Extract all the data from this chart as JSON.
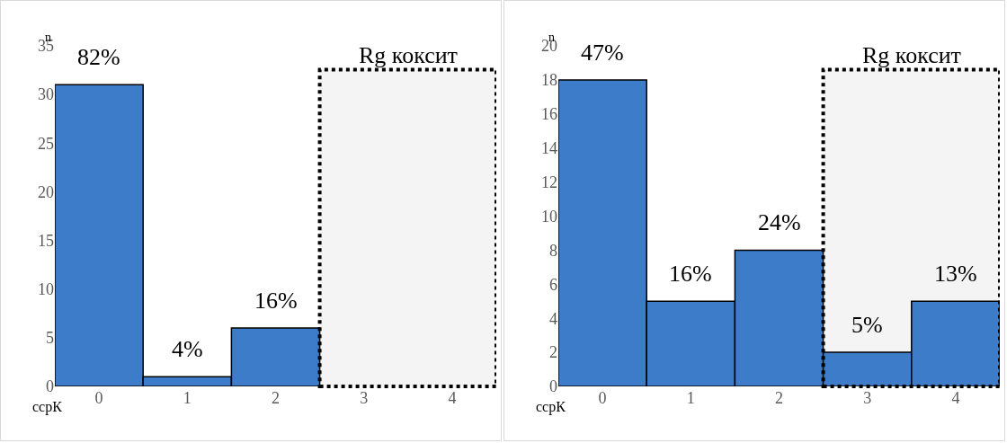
{
  "chart_data": [
    {
      "type": "bar",
      "categories": [
        "0",
        "1",
        "2",
        "3",
        "4"
      ],
      "values": [
        31,
        1,
        6,
        null,
        null
      ],
      "color": "#3d7cc9",
      "ylim": [
        0,
        35
      ],
      "yticks": [
        0,
        5,
        10,
        15,
        20,
        25,
        30,
        35
      ],
      "ylabel": "n",
      "xlabel": "ссрК",
      "grid": false,
      "annotations": [
        {
          "text": "82%",
          "x": "0",
          "y": 31
        },
        {
          "text": "4%",
          "x": "1",
          "y": 1
        },
        {
          "text": "16%",
          "x": "2",
          "y": 6
        }
      ],
      "bands": [
        {
          "axis": "x",
          "from": "3",
          "to": "4",
          "label": "Rg коксит",
          "color": "#f4f4f4"
        }
      ]
    },
    {
      "type": "bar",
      "categories": [
        "0",
        "1",
        "2",
        "3",
        "4"
      ],
      "values": [
        18,
        5,
        8,
        2,
        5
      ],
      "color": "#3d7cc9",
      "ylim": [
        0,
        20
      ],
      "yticks": [
        0,
        2,
        4,
        6,
        8,
        10,
        12,
        14,
        16,
        18,
        20
      ],
      "ylabel": "n",
      "xlabel": "ссрК",
      "grid": false,
      "annotations": [
        {
          "text": "47%",
          "x": "0",
          "y": 18
        },
        {
          "text": "16%",
          "x": "1",
          "y": 5
        },
        {
          "text": "24%",
          "x": "2",
          "y": 8
        },
        {
          "text": "5%",
          "x": "3",
          "y": 2
        },
        {
          "text": "13%",
          "x": "4",
          "y": 5
        }
      ],
      "bands": [
        {
          "axis": "x",
          "from": "3",
          "to": "4",
          "label": "Rg коксит",
          "color": "#f4f4f4"
        }
      ]
    }
  ]
}
